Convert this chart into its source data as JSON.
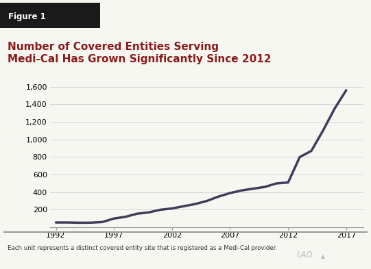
{
  "title_line1": "Number of Covered Entities Serving",
  "title_line2": "Medi-Cal Has Grown Significantly Since 2012",
  "title_color": "#8B1A1A",
  "figure_label": "Figure 1",
  "figure_label_bg": "#1a1a1a",
  "figure_label_color": "#ffffff",
  "footnote": "Each unit represents a distinct covered entity site that is registered as a Medi-Cal provider.",
  "line_color": "#3d3d5c",
  "line_width": 2.5,
  "years": [
    1992,
    1993,
    1994,
    1995,
    1996,
    1997,
    1998,
    1999,
    2000,
    2001,
    2002,
    2003,
    2004,
    2005,
    2006,
    2007,
    2008,
    2009,
    2010,
    2011,
    2012,
    2013,
    2014,
    2015,
    2016,
    2017
  ],
  "values": [
    55,
    55,
    52,
    53,
    60,
    100,
    120,
    155,
    170,
    200,
    215,
    240,
    265,
    300,
    350,
    390,
    420,
    440,
    460,
    500,
    510,
    800,
    870,
    1100,
    1350,
    1560
  ],
  "yticks": [
    0,
    200,
    400,
    600,
    800,
    1000,
    1200,
    1400,
    1600
  ],
  "ytick_labels": [
    "",
    "200",
    "400",
    "600",
    "800",
    "1,000",
    "1,200",
    "1,400",
    "1,600"
  ],
  "xticks": [
    1992,
    1997,
    2002,
    2007,
    2012,
    2017
  ],
  "ylim": [
    0,
    1700
  ],
  "xlim": [
    1991.5,
    2018.5
  ],
  "bg_color": "#f7f7f2",
  "grid_color": "#cccccc",
  "border_color": "#999999"
}
